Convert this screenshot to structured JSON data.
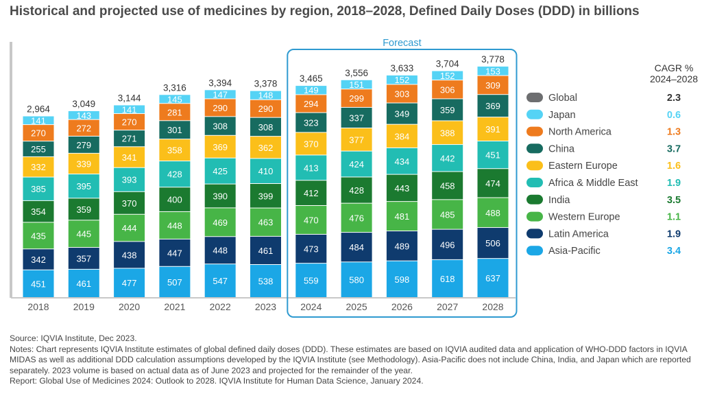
{
  "title": "Historical and projected use of medicines by region, 2018–2028, Defined Daily Doses (DDD) in billions",
  "forecast_label": "Forecast",
  "cagr_header": [
    "CAGR %",
    "2024–2028"
  ],
  "notes": {
    "source": "Source: IQVIA Institute, Dec 2023.",
    "notes": "Notes: Chart represents IQVIA Institute estimates of global defined daily doses (DDD). These estimates are based on IQVIA audited data and application of WHO-DDD factors in IQVIA MIDAS as well as additional DDD calculation assumptions developed by the IQVIA Institute (see Methodology). Asia-Pacific does not include China, India, and Japan which are reported separately. 2023 volume is based on actual data as of June 2023 and projected for the remainder of the year.",
    "report": "Report: Global Use of Medicines 2024: Outlook to 2028. IQVIA Institute for Human Data Science, January 2024."
  },
  "colors": {
    "Asia-Pacific": "#1ba7e6",
    "Latin America": "#0f3b6e",
    "Western Europe": "#47b547",
    "India": "#1b7a30",
    "Africa & Middle East": "#22bdb3",
    "Eastern Europe": "#fbbf1a",
    "China": "#176b60",
    "North America": "#ee7b1e",
    "Japan": "#55d3f5",
    "Global": "#6d6e70",
    "forecast_box": "#2e9ad0",
    "axis": "#c8c8c8"
  },
  "chart_data": {
    "type": "bar",
    "stacked": true,
    "categories": [
      "2018",
      "2019",
      "2020",
      "2021",
      "2022",
      "2023",
      "2024",
      "2025",
      "2026",
      "2027",
      "2028"
    ],
    "forecast_categories": [
      "2024",
      "2025",
      "2026",
      "2027",
      "2028"
    ],
    "series": [
      {
        "name": "Asia-Pacific",
        "values": [
          451,
          461,
          477,
          507,
          547,
          538,
          559,
          580,
          598,
          618,
          637
        ]
      },
      {
        "name": "Latin America",
        "values": [
          342,
          357,
          438,
          447,
          448,
          461,
          473,
          484,
          489,
          496,
          506
        ]
      },
      {
        "name": "Western Europe",
        "values": [
          435,
          445,
          444,
          448,
          469,
          463,
          470,
          476,
          481,
          485,
          488
        ]
      },
      {
        "name": "India",
        "values": [
          354,
          359,
          370,
          400,
          390,
          399,
          412,
          428,
          443,
          458,
          474
        ]
      },
      {
        "name": "Africa & Middle East",
        "values": [
          385,
          395,
          393,
          428,
          425,
          410,
          413,
          424,
          434,
          442,
          451
        ]
      },
      {
        "name": "Eastern Europe",
        "values": [
          332,
          339,
          341,
          358,
          369,
          362,
          370,
          377,
          384,
          388,
          391
        ]
      },
      {
        "name": "China",
        "values": [
          255,
          279,
          271,
          301,
          308,
          308,
          323,
          337,
          349,
          359,
          369
        ]
      },
      {
        "name": "North America",
        "values": [
          270,
          272,
          270,
          281,
          290,
          290,
          294,
          299,
          303,
          306,
          309
        ]
      },
      {
        "name": "Japan",
        "values": [
          141,
          143,
          141,
          145,
          147,
          148,
          149,
          151,
          152,
          152,
          153
        ]
      }
    ],
    "totals": [
      "2,964",
      "3,049",
      "3,144",
      "3,316",
      "3,394",
      "3,378",
      "3,465",
      "3,556",
      "3,633",
      "3,704",
      "3,778"
    ],
    "legend": [
      {
        "name": "Global",
        "cagr": "2.3"
      },
      {
        "name": "Japan",
        "cagr": "0.6"
      },
      {
        "name": "North America",
        "cagr": "1.3"
      },
      {
        "name": "China",
        "cagr": "3.7"
      },
      {
        "name": "Eastern Europe",
        "cagr": "1.6"
      },
      {
        "name": "Africa & Middle East",
        "cagr": "1.9"
      },
      {
        "name": "India",
        "cagr": "3.5"
      },
      {
        "name": "Western Europe",
        "cagr": "1.1"
      },
      {
        "name": "Latin America",
        "cagr": "1.9"
      },
      {
        "name": "Asia-Pacific",
        "cagr": "3.4"
      }
    ],
    "ylim": [
      0,
      3778
    ],
    "legend_position": "right"
  }
}
